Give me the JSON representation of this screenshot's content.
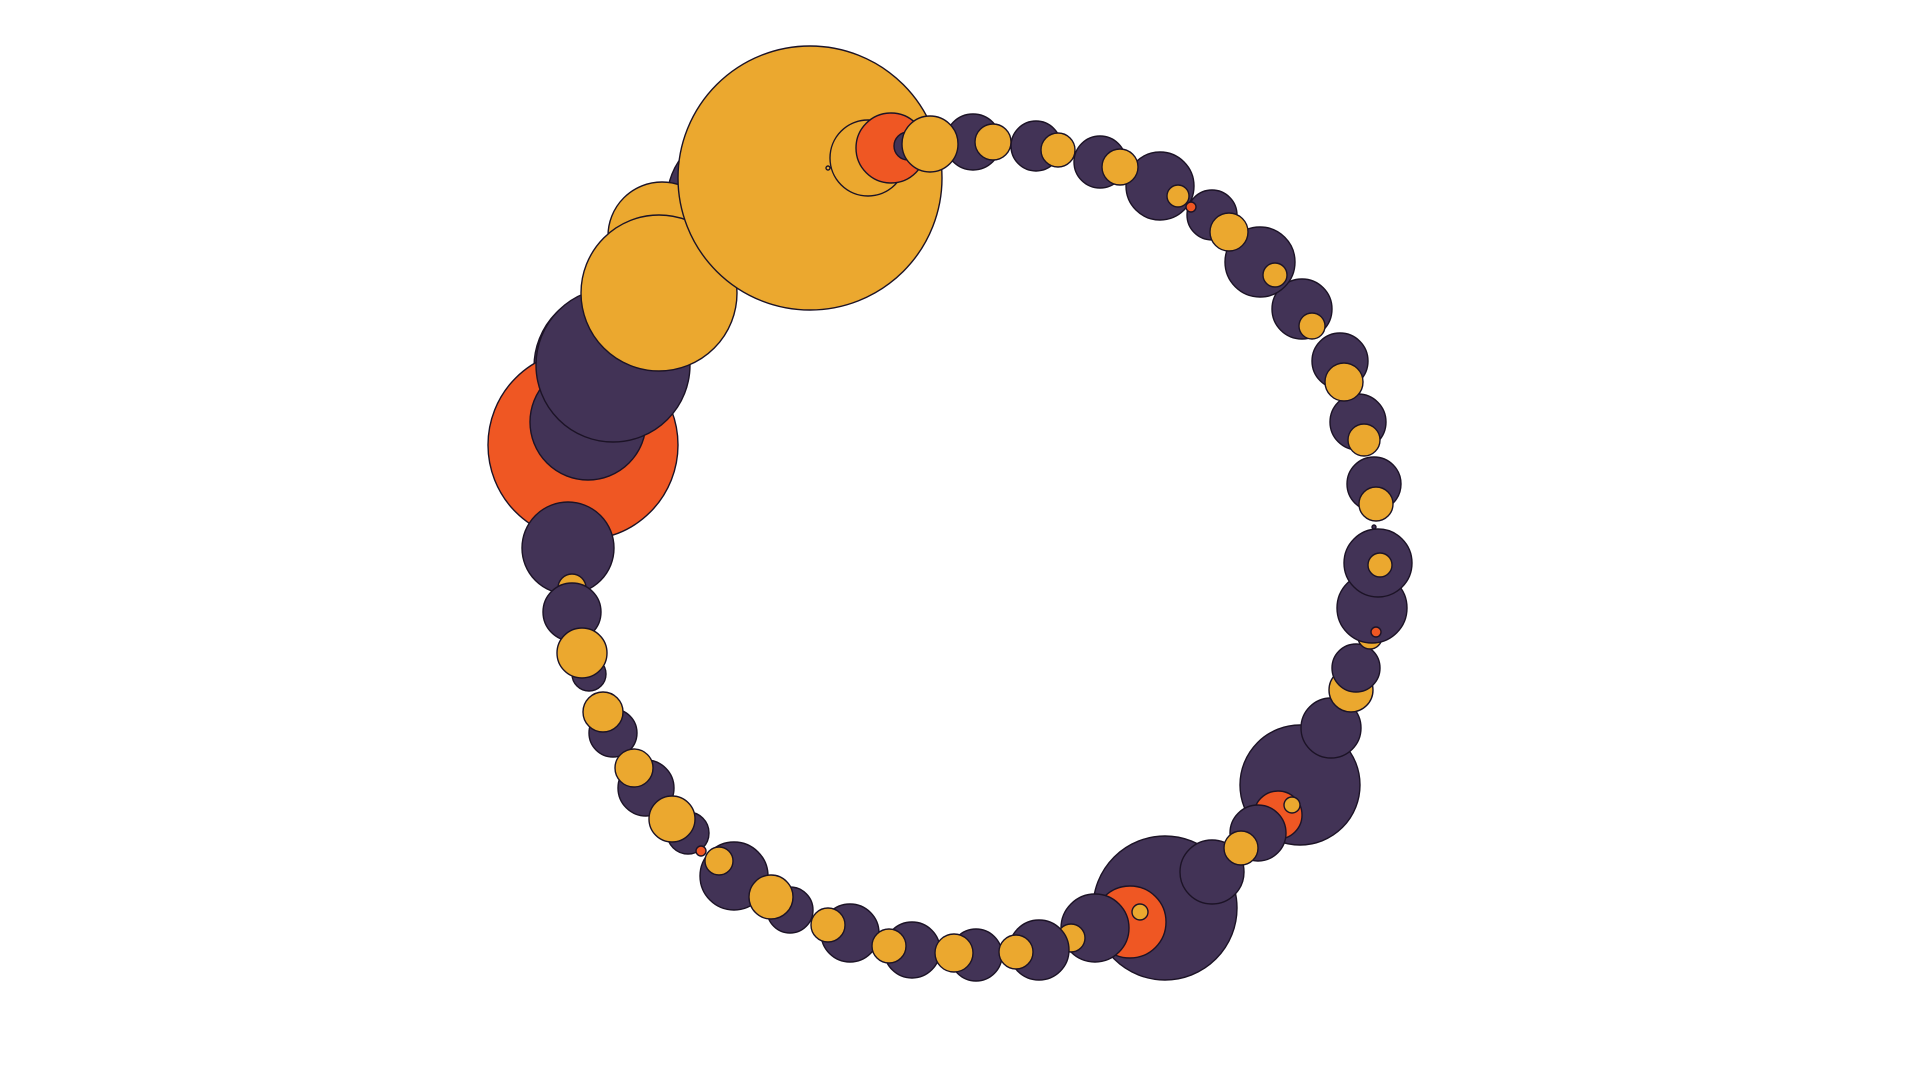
{
  "colors": {
    "background": "#ffffff",
    "outline": "#1c1326",
    "purple": "#423356",
    "orange": "#eba82f",
    "red": "#ef5723"
  },
  "artwork": {
    "kind": "circle-ring-pattern",
    "description_visible_text": ""
  }
}
